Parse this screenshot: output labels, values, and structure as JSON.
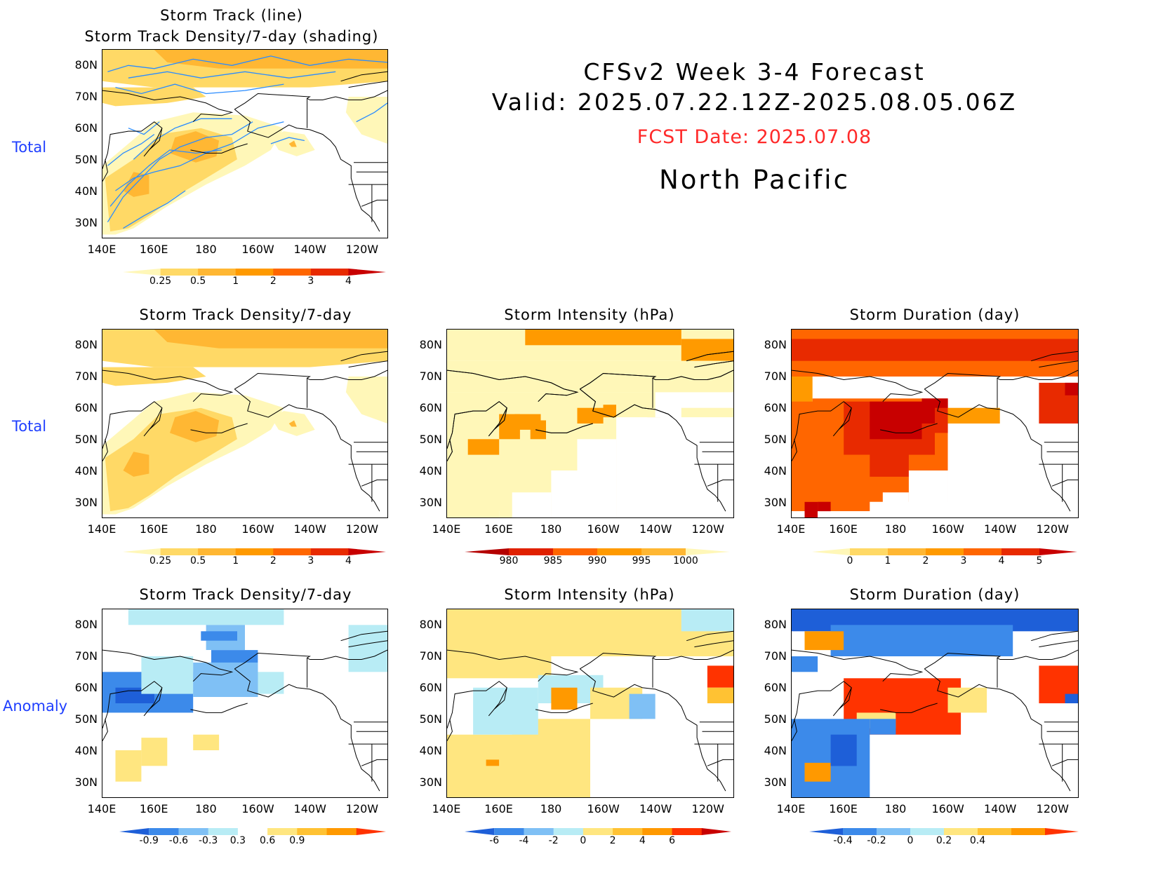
{
  "header": {
    "line1": "CFSv2 Week 3-4 Forecast",
    "line2": "Valid: 2025.07.22.12Z-2025.08.05.06Z",
    "fcst_date": "FCST Date: 2025.07.08",
    "region": "North Pacific"
  },
  "row_labels": [
    "Total",
    "Total",
    "Anomaly"
  ],
  "lat_labels": [
    "80N",
    "70N",
    "60N",
    "50N",
    "40N",
    "30N"
  ],
  "lon_labels": [
    "140E",
    "160E",
    "180",
    "160W",
    "140W",
    "120W"
  ],
  "panels": {
    "track": {
      "title1": "Storm Track (line)",
      "title2": "Storm Track Density/7-day (shading)"
    },
    "density_total": {
      "title": "Storm Track Density/7-day"
    },
    "intensity_total": {
      "title": "Storm Intensity (hPa)"
    },
    "duration_total": {
      "title": "Storm Duration (day)"
    },
    "density_anom": {
      "title": "Storm Track Density/7-day"
    },
    "intensity_anom": {
      "title": "Storm Intensity (hPa)"
    },
    "duration_anom": {
      "title": "Storm Duration (day)"
    }
  },
  "colorbars": {
    "density": {
      "labels": [
        "0.25",
        "0.5",
        "1",
        "2",
        "3",
        "4"
      ],
      "colors": [
        "#fff7b8",
        "#ffd966",
        "#ffb733",
        "#ff9a00",
        "#ff6600",
        "#e82a00",
        "#c80000"
      ]
    },
    "intensity": {
      "labels": [
        "980",
        "985",
        "990",
        "995",
        "1000"
      ],
      "colors": [
        "#b40000",
        "#e02000",
        "#ff6600",
        "#ff9a00",
        "#ffb733",
        "#fff7b8"
      ]
    },
    "duration": {
      "labels": [
        "0",
        "1",
        "2",
        "3",
        "4",
        "5"
      ],
      "colors": [
        "#fff7b8",
        "#ffd966",
        "#ffb733",
        "#ff9a00",
        "#ff6600",
        "#e82a00",
        "#c80000"
      ]
    },
    "density_anom": {
      "labels": [
        "-0.9",
        "-0.6",
        "-0.3",
        "0.3",
        "0.6",
        "0.9"
      ],
      "colors": [
        "#1e5fd8",
        "#3c8aea",
        "#7fc0f5",
        "#b8ecf5",
        "#ffffff",
        "#ffe680",
        "#ffc233",
        "#ff9900",
        "#ff3300"
      ]
    },
    "intensity_anom": {
      "labels": [
        "-6",
        "-4",
        "-2",
        "0",
        "2",
        "4",
        "6"
      ],
      "colors": [
        "#1e5fd8",
        "#3c8aea",
        "#7fc0f5",
        "#b8ecf5",
        "#ffe680",
        "#ffc233",
        "#ff9900",
        "#ff3300",
        "#c80000"
      ]
    },
    "duration_anom": {
      "labels": [
        "-0.4",
        "-0.2",
        "0",
        "0.2",
        "0.4"
      ],
      "colors": [
        "#1e5fd8",
        "#3c8aea",
        "#7fc0f5",
        "#b8ecf5",
        "#ffe680",
        "#ffc233",
        "#ff9900",
        "#ff3300"
      ]
    }
  },
  "colors": {
    "land_outline": "#000000",
    "track_line": "#2a8cff",
    "row_label": "#1f3fff",
    "fcst_date": "#ff2a2a"
  }
}
